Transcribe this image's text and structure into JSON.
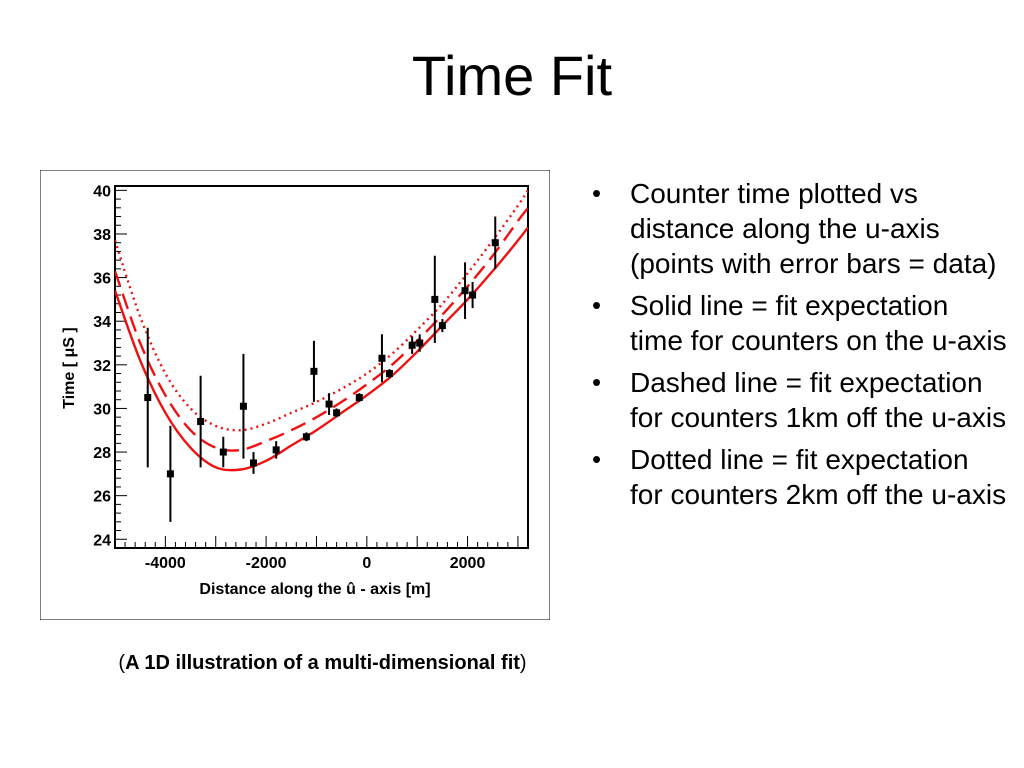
{
  "slide": {
    "title": "Time Fit",
    "caption_open": "(",
    "caption_main": "A 1D illustration of a multi-dimensional fit",
    "caption_close": ")",
    "bullets": [
      "Counter time plotted vs distance along the u-axis (points with error bars = data)",
      "Solid line = fit expectation time for counters on the u-axis",
      "Dashed line = fit expectation for counters 1km off the u-axis",
      "Dotted line = fit expectation for counters 2km off the u-axis"
    ]
  },
  "chart_data": {
    "type": "scatter",
    "xlabel": "Distance along the û - axis [m]",
    "ylabel": "Time [ μS ]",
    "xlim": [
      -5000,
      3200
    ],
    "ylim": [
      23.6,
      40.2
    ],
    "xticks": [
      -4000,
      -2000,
      0,
      2000
    ],
    "yticks": [
      24,
      26,
      28,
      30,
      32,
      34,
      36,
      38,
      40
    ],
    "grid": false,
    "legend": "none",
    "colors": {
      "data": "#000000",
      "fit": "#ee1111"
    },
    "series": [
      {
        "style": "points-with-error-bars",
        "points": [
          {
            "x": -4350,
            "y": 30.5,
            "err": 3.2
          },
          {
            "x": -3900,
            "y": 27.0,
            "err": 2.2
          },
          {
            "x": -3300,
            "y": 29.4,
            "err": 2.1
          },
          {
            "x": -2850,
            "y": 28.0,
            "err": 0.7
          },
          {
            "x": -2450,
            "y": 30.1,
            "err": 2.4
          },
          {
            "x": -2250,
            "y": 27.5,
            "err": 0.5
          },
          {
            "x": -1800,
            "y": 28.1,
            "err": 0.4
          },
          {
            "x": -1200,
            "y": 28.7,
            "err": 0.2
          },
          {
            "x": -1050,
            "y": 31.7,
            "err": 1.4
          },
          {
            "x": -750,
            "y": 30.2,
            "err": 0.5
          },
          {
            "x": -600,
            "y": 29.8,
            "err": 0.2
          },
          {
            "x": -150,
            "y": 30.5,
            "err": 0.2
          },
          {
            "x": 300,
            "y": 32.3,
            "err": 1.1
          },
          {
            "x": 450,
            "y": 31.6,
            "err": 0.2
          },
          {
            "x": 900,
            "y": 32.9,
            "err": 0.4
          },
          {
            "x": 1050,
            "y": 33.0,
            "err": 0.4
          },
          {
            "x": 1350,
            "y": 35.0,
            "err": 2.0
          },
          {
            "x": 1500,
            "y": 33.8,
            "err": 0.3
          },
          {
            "x": 1950,
            "y": 35.4,
            "err": 1.3
          },
          {
            "x": 2100,
            "y": 35.2,
            "err": 0.6
          },
          {
            "x": 2550,
            "y": 37.6,
            "err": 1.2
          }
        ]
      },
      {
        "style": "solid",
        "x": [
          -5000,
          -4500,
          -4000,
          -3500,
          -3000,
          -2500,
          -2000,
          -1500,
          -1000,
          -500,
          0,
          500,
          1000,
          1500,
          2000,
          2500,
          3000,
          3200
        ],
        "y": [
          35.4,
          32.2,
          29.8,
          28.2,
          27.3,
          27.2,
          27.6,
          28.3,
          29.0,
          29.8,
          30.6,
          31.5,
          32.6,
          33.8,
          35.0,
          36.3,
          37.7,
          38.3
        ]
      },
      {
        "style": "dashed",
        "x": [
          -5000,
          -4500,
          -4000,
          -3500,
          -3000,
          -2500,
          -2000,
          -1500,
          -1000,
          -500,
          0,
          500,
          1000,
          1500,
          2000,
          2500,
          3000,
          3200
        ],
        "y": [
          36.3,
          33.0,
          30.6,
          29.0,
          28.2,
          28.1,
          28.5,
          29.0,
          29.6,
          30.3,
          31.1,
          32.0,
          33.1,
          34.3,
          35.6,
          37.0,
          38.6,
          39.2
        ]
      },
      {
        "style": "dotted",
        "x": [
          -5000,
          -4500,
          -4000,
          -3500,
          -3000,
          -2500,
          -2000,
          -1500,
          -1000,
          -500,
          0,
          500,
          1000,
          1500,
          2000,
          2500,
          3000,
          3200
        ],
        "y": [
          37.7,
          34.2,
          31.6,
          30.0,
          29.2,
          29.0,
          29.3,
          29.8,
          30.3,
          30.9,
          31.6,
          32.5,
          33.6,
          34.8,
          36.2,
          37.7,
          39.3,
          40.0
        ]
      }
    ]
  }
}
